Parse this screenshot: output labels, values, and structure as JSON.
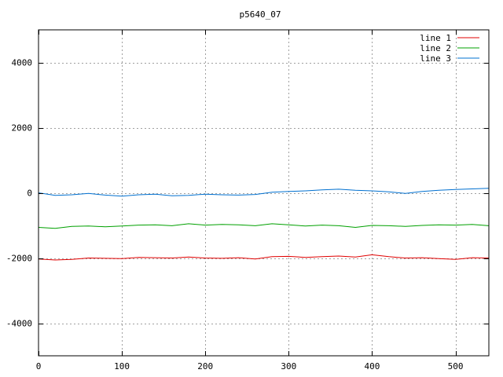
{
  "chart_data": {
    "type": "line",
    "title": "p5640_07",
    "xlabel": "",
    "ylabel": "",
    "xlim": [
      0,
      540
    ],
    "ylim": [
      -5000,
      5000
    ],
    "grid": true,
    "legend_position": "top-right",
    "x_ticks": [
      0,
      100,
      200,
      300,
      400,
      500
    ],
    "y_ticks": [
      -4000,
      -2000,
      0,
      2000,
      4000
    ],
    "x_tick_labels": [
      "0",
      "100",
      "200",
      "300",
      "400",
      "500"
    ],
    "y_tick_labels": [
      "-4000",
      "-2000",
      "0",
      "2000",
      "4000"
    ],
    "x": [
      0,
      20,
      40,
      60,
      80,
      100,
      120,
      140,
      160,
      180,
      200,
      220,
      240,
      260,
      280,
      300,
      320,
      340,
      360,
      380,
      400,
      420,
      440,
      460,
      480,
      500,
      520,
      540
    ],
    "series": [
      {
        "name": "line 1",
        "color": "#e00000",
        "values": [
          -2030,
          -2060,
          -2040,
          -2000,
          -2010,
          -2020,
          -1980,
          -1990,
          -2000,
          -1970,
          -2000,
          -2010,
          -1990,
          -2030,
          -1960,
          -1950,
          -1980,
          -1960,
          -1940,
          -1970,
          -1900,
          -1960,
          -2000,
          -1990,
          -2020,
          -2040,
          -1990,
          -2000
        ]
      },
      {
        "name": "line 2",
        "color": "#00a000",
        "values": [
          -1060,
          -1090,
          -1030,
          -1020,
          -1040,
          -1020,
          -990,
          -980,
          -1010,
          -950,
          -990,
          -970,
          -980,
          -1010,
          -950,
          -980,
          -1020,
          -990,
          -1010,
          -1060,
          -1000,
          -1010,
          -1030,
          -1000,
          -980,
          -990,
          -970,
          -1010
        ]
      },
      {
        "name": "line 3",
        "color": "#0070d0",
        "values": [
          0,
          -80,
          -60,
          -20,
          -70,
          -100,
          -60,
          -40,
          -90,
          -80,
          -40,
          -60,
          -70,
          -50,
          20,
          40,
          60,
          90,
          110,
          80,
          60,
          30,
          -20,
          40,
          80,
          100,
          120,
          140
        ]
      }
    ]
  }
}
